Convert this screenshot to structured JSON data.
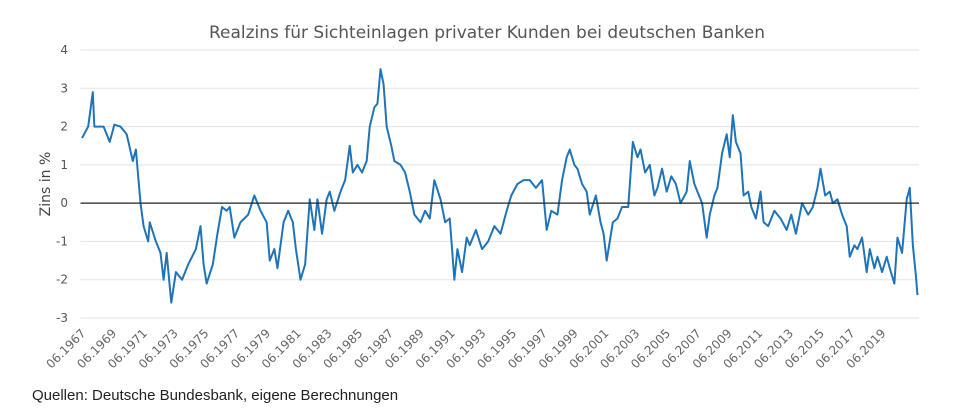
{
  "chart_data": {
    "type": "line",
    "title": "Realzins für Sichteinlagen privater Kunden bei deutschen Banken",
    "y_label": "Zins in %",
    "note": "Quellen: Deutsche Bundesbank, eigene Berechnungen",
    "color": "#1f74b8",
    "grid": true,
    "ylim": [
      -3,
      4
    ],
    "yticks": [
      4,
      3,
      2,
      1,
      0,
      -1,
      -2,
      -3
    ],
    "xlim": [
      1967.3,
      2021.8
    ],
    "xticks": [
      {
        "value": 1967.42,
        "label": "06.1967"
      },
      {
        "value": 1969.42,
        "label": "06.1969"
      },
      {
        "value": 1971.42,
        "label": "06.1971"
      },
      {
        "value": 1973.42,
        "label": "06.1973"
      },
      {
        "value": 1975.42,
        "label": "06.1975"
      },
      {
        "value": 1977.42,
        "label": "06.1977"
      },
      {
        "value": 1979.42,
        "label": "06.1979"
      },
      {
        "value": 1981.42,
        "label": "06.1981"
      },
      {
        "value": 1983.42,
        "label": "06.1983"
      },
      {
        "value": 1985.42,
        "label": "06.1985"
      },
      {
        "value": 1987.42,
        "label": "06.1987"
      },
      {
        "value": 1989.42,
        "label": "06.1989"
      },
      {
        "value": 1991.42,
        "label": "06.1991"
      },
      {
        "value": 1993.42,
        "label": "06.1993"
      },
      {
        "value": 1995.42,
        "label": "06.1995"
      },
      {
        "value": 1997.42,
        "label": "06.1997"
      },
      {
        "value": 1999.42,
        "label": "06.1999"
      },
      {
        "value": 2001.42,
        "label": "06.2001"
      },
      {
        "value": 2003.42,
        "label": "06.2003"
      },
      {
        "value": 2005.42,
        "label": "06.2005"
      },
      {
        "value": 2007.42,
        "label": "06.2007"
      },
      {
        "value": 2009.42,
        "label": "06.2009"
      },
      {
        "value": 2011.42,
        "label": "06.2011"
      },
      {
        "value": 2013.42,
        "label": "06.2013"
      },
      {
        "value": 2015.42,
        "label": "06.2015"
      },
      {
        "value": 2017.42,
        "label": "06.2017"
      },
      {
        "value": 2019.42,
        "label": "06.2019"
      }
    ],
    "x": [
      1967.4,
      1967.8,
      1968.1,
      1968.2,
      1968.8,
      1969.2,
      1969.5,
      1969.9,
      1970.3,
      1970.7,
      1970.9,
      1971.2,
      1971.4,
      1971.7,
      1971.8,
      1972.2,
      1972.5,
      1972.7,
      1972.9,
      1973.2,
      1973.5,
      1973.9,
      1974.3,
      1974.8,
      1975.1,
      1975.3,
      1975.5,
      1975.9,
      1976.2,
      1976.5,
      1976.8,
      1977.0,
      1977.3,
      1977.7,
      1978.2,
      1978.6,
      1979.0,
      1979.4,
      1979.6,
      1979.9,
      1980.1,
      1980.5,
      1980.8,
      1981.1,
      1981.3,
      1981.6,
      1981.9,
      1982.2,
      1982.5,
      1982.7,
      1983.0,
      1983.3,
      1983.5,
      1983.8,
      1984.2,
      1984.5,
      1984.8,
      1985.0,
      1985.3,
      1985.6,
      1985.9,
      1986.1,
      1986.4,
      1986.6,
      1986.8,
      1987.0,
      1987.2,
      1987.5,
      1987.7,
      1988.1,
      1988.4,
      1988.7,
      1989.0,
      1989.4,
      1989.7,
      1990.0,
      1990.3,
      1990.7,
      1991.0,
      1991.3,
      1991.6,
      1991.8,
      1992.1,
      1992.4,
      1992.6,
      1993.0,
      1993.4,
      1993.8,
      1994.2,
      1994.6,
      1995.0,
      1995.3,
      1995.7,
      1996.1,
      1996.5,
      1996.9,
      1997.3,
      1997.6,
      1997.9,
      1998.3,
      1998.6,
      1998.9,
      1999.1,
      1999.4,
      1999.6,
      1999.9,
      2000.2,
      2000.4,
      2000.8,
      2001.1,
      2001.3,
      2001.5,
      2001.9,
      2002.2,
      2002.5,
      2002.9,
      2003.2,
      2003.5,
      2003.7,
      2004.0,
      2004.3,
      2004.6,
      2004.8,
      2005.1,
      2005.4,
      2005.7,
      2006.0,
      2006.3,
      2006.7,
      2006.9,
      2007.2,
      2007.4,
      2007.7,
      2008.0,
      2008.2,
      2008.5,
      2008.7,
      2009.0,
      2009.3,
      2009.5,
      2009.7,
      2009.9,
      2010.2,
      2010.4,
      2010.7,
      2010.9,
      2011.2,
      2011.5,
      2011.7,
      2012.0,
      2012.4,
      2012.8,
      2013.2,
      2013.5,
      2013.8,
      2014.2,
      2014.6,
      2014.9,
      2015.2,
      2015.4,
      2015.7,
      2016.0,
      2016.2,
      2016.5,
      2016.8,
      2017.1,
      2017.3,
      2017.6,
      2017.8,
      2018.1,
      2018.4,
      2018.6,
      2018.9,
      2019.1,
      2019.4,
      2019.7,
      2019.9,
      2020.2,
      2020.4,
      2020.7,
      2021.0,
      2021.2,
      2021.4,
      2021.6,
      2021.7
    ],
    "values": [
      1.7,
      2.0,
      2.9,
      2.0,
      2.0,
      1.6,
      2.05,
      2.0,
      1.8,
      1.1,
      1.4,
      0.0,
      -0.6,
      -1.0,
      -0.5,
      -1.0,
      -1.3,
      -2.0,
      -1.3,
      -2.6,
      -1.8,
      -2.0,
      -1.6,
      -1.2,
      -0.6,
      -1.6,
      -2.1,
      -1.6,
      -0.8,
      -0.1,
      -0.2,
      -0.1,
      -0.9,
      -0.5,
      -0.3,
      0.2,
      -0.2,
      -0.5,
      -1.5,
      -1.2,
      -1.7,
      -0.5,
      -0.2,
      -0.5,
      -1.2,
      -2.0,
      -1.6,
      0.1,
      -0.7,
      0.1,
      -0.8,
      0.1,
      0.3,
      -0.2,
      0.3,
      0.6,
      1.5,
      0.8,
      1.0,
      0.8,
      1.1,
      2.0,
      2.5,
      2.6,
      3.5,
      3.1,
      2.0,
      1.5,
      1.1,
      1.0,
      0.8,
      0.3,
      -0.3,
      -0.5,
      -0.2,
      -0.4,
      0.6,
      0.1,
      -0.5,
      -0.4,
      -2.0,
      -1.2,
      -1.8,
      -0.9,
      -1.1,
      -0.7,
      -1.2,
      -1.0,
      -0.6,
      -0.8,
      -0.2,
      0.2,
      0.5,
      0.6,
      0.6,
      0.4,
      0.6,
      -0.7,
      -0.2,
      -0.3,
      0.6,
      1.2,
      1.4,
      1.0,
      0.9,
      0.5,
      0.3,
      -0.3,
      0.2,
      -0.5,
      -0.8,
      -1.5,
      -0.5,
      -0.4,
      -0.1,
      -0.1,
      1.6,
      1.2,
      1.4,
      0.8,
      1.0,
      0.2,
      0.4,
      0.9,
      0.3,
      0.7,
      0.5,
      0.0,
      0.3,
      1.1,
      0.5,
      0.3,
      0.0,
      -0.9,
      -0.3,
      0.2,
      0.4,
      1.3,
      1.8,
      1.2,
      2.3,
      1.6,
      1.3,
      0.2,
      0.3,
      -0.1,
      -0.4,
      0.3,
      -0.5,
      -0.6,
      -0.2,
      -0.4,
      -0.7,
      -0.3,
      -0.8,
      0.0,
      -0.3,
      -0.1,
      0.4,
      0.9,
      0.2,
      0.3,
      0.0,
      0.1,
      -0.3,
      -0.6,
      -1.4,
      -1.1,
      -1.2,
      -0.9,
      -1.8,
      -1.2,
      -1.7,
      -1.4,
      -1.8,
      -1.4,
      -1.7,
      -2.1,
      -0.9,
      -1.3,
      0.1,
      0.4,
      -1.1,
      -1.9,
      -2.4
    ]
  }
}
